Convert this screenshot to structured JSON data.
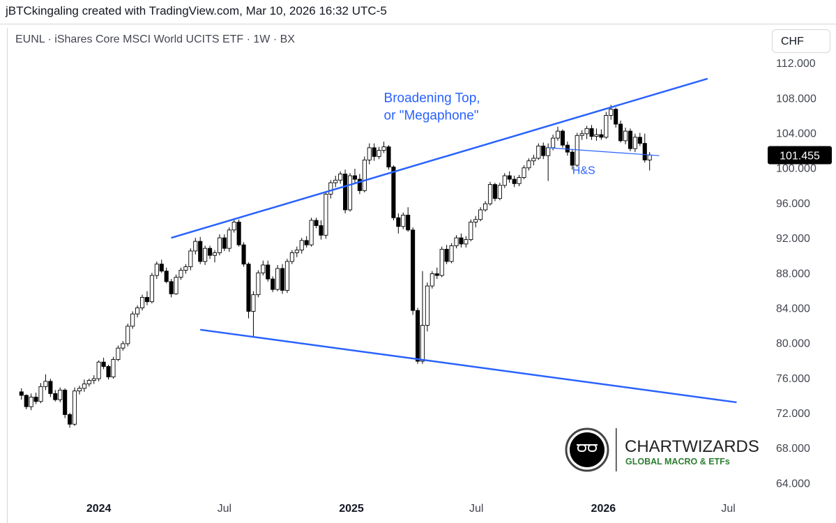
{
  "header": {
    "caption": "jBTCkingaling created with TradingView.com, Mar 10, 2026 16:32 UTC-5"
  },
  "chart_header": {
    "symbol_title": "EUNL · iShares Core MSCI World UCITS ETF · 1W · BX",
    "currency": "CHF"
  },
  "colors": {
    "trendline": "#2962ff",
    "annotation_text": "#2962ff",
    "candle_up_fill": "#ffffff",
    "candle_down_fill": "#000000",
    "candle_outline": "#000000",
    "price_tag_bg": "#000000",
    "price_tag_text": "#ffffff"
  },
  "logo": {
    "icon": "eyeglasses-icon",
    "brand": "CHARTWIZARDS",
    "tagline": "GLOBAL MACRO & ETFs"
  },
  "chart_data": {
    "type": "candlestick",
    "interval": "1W",
    "ylim": [
      61,
      116
    ],
    "y_ticks": [
      64,
      68,
      72,
      76,
      80,
      84,
      88,
      92,
      96,
      100,
      104,
      108,
      112
    ],
    "y_tick_labels": [
      "64.000",
      "68.000",
      "72.000",
      "76.000",
      "80.000",
      "84.000",
      "88.000",
      "92.000",
      "96.000",
      "100.000",
      "104.000",
      "108.000",
      "112.000"
    ],
    "x_range": [
      "2023-08-21",
      "2026-08-24"
    ],
    "x_ticks": [
      {
        "date": "2024-01-01",
        "label": "2024",
        "bold": true
      },
      {
        "date": "2024-07-01",
        "label": "Jul",
        "bold": false
      },
      {
        "date": "2025-01-01",
        "label": "2025",
        "bold": true
      },
      {
        "date": "2025-07-01",
        "label": "Jul",
        "bold": false
      },
      {
        "date": "2026-01-01",
        "label": "2026",
        "bold": true
      },
      {
        "date": "2026-07-01",
        "label": "Jul",
        "bold": false
      }
    ],
    "last_price": 101.455,
    "last_price_label": "101.455",
    "candles": [
      [
        "2023-09-11",
        74.4,
        74.8,
        73.5,
        74.0
      ],
      [
        "2023-09-18",
        74.0,
        74.1,
        72.4,
        72.7
      ],
      [
        "2023-09-25",
        72.7,
        74.2,
        72.3,
        73.8
      ],
      [
        "2023-10-02",
        73.8,
        74.3,
        73.0,
        73.3
      ],
      [
        "2023-10-09",
        73.3,
        75.4,
        73.1,
        75.0
      ],
      [
        "2023-10-16",
        75.0,
        76.4,
        74.6,
        75.6
      ],
      [
        "2023-10-23",
        75.6,
        75.9,
        73.8,
        74.2
      ],
      [
        "2023-10-30",
        74.2,
        74.6,
        73.3,
        73.5
      ],
      [
        "2023-11-06",
        73.5,
        74.9,
        73.2,
        74.6
      ],
      [
        "2023-11-13",
        74.6,
        74.8,
        71.4,
        71.8
      ],
      [
        "2023-11-20",
        71.8,
        72.0,
        70.3,
        70.7
      ],
      [
        "2023-11-27",
        70.7,
        74.9,
        70.5,
        74.5
      ],
      [
        "2023-12-04",
        74.5,
        75.1,
        74.1,
        74.8
      ],
      [
        "2023-12-11",
        74.8,
        75.8,
        74.4,
        75.3
      ],
      [
        "2023-12-18",
        75.3,
        75.9,
        75.0,
        75.7
      ],
      [
        "2023-12-25",
        75.7,
        76.3,
        75.3,
        75.9
      ],
      [
        "2024-01-01",
        75.9,
        78.0,
        75.6,
        77.8
      ],
      [
        "2024-01-08",
        77.8,
        78.3,
        77.0,
        77.3
      ],
      [
        "2024-01-15",
        77.3,
        77.5,
        75.8,
        76.1
      ],
      [
        "2024-01-22",
        76.1,
        78.4,
        75.9,
        78.1
      ],
      [
        "2024-01-29",
        78.1,
        79.7,
        77.9,
        79.4
      ],
      [
        "2024-02-05",
        79.4,
        80.2,
        79.1,
        79.9
      ],
      [
        "2024-02-12",
        79.9,
        82.2,
        79.6,
        81.9
      ],
      [
        "2024-02-19",
        81.9,
        83.6,
        81.6,
        83.3
      ],
      [
        "2024-02-26",
        83.3,
        84.3,
        82.9,
        84.0
      ],
      [
        "2024-03-04",
        84.0,
        85.5,
        83.7,
        85.2
      ],
      [
        "2024-03-11",
        85.2,
        85.9,
        84.3,
        84.7
      ],
      [
        "2024-03-18",
        84.7,
        88.0,
        84.5,
        87.7
      ],
      [
        "2024-03-25",
        87.7,
        89.3,
        87.3,
        89.0
      ],
      [
        "2024-04-01",
        89.0,
        89.5,
        88.0,
        88.2
      ],
      [
        "2024-04-08",
        88.2,
        88.6,
        86.8,
        87.0
      ],
      [
        "2024-04-15",
        87.0,
        87.3,
        85.2,
        85.6
      ],
      [
        "2024-04-22",
        85.6,
        87.8,
        85.5,
        87.5
      ],
      [
        "2024-04-29",
        87.5,
        88.6,
        87.2,
        88.3
      ],
      [
        "2024-05-06",
        88.3,
        89.0,
        87.9,
        88.7
      ],
      [
        "2024-05-13",
        88.7,
        90.8,
        88.3,
        90.5
      ],
      [
        "2024-05-20",
        90.5,
        92.0,
        90.1,
        91.6
      ],
      [
        "2024-05-27",
        91.6,
        92.1,
        89.0,
        89.3
      ],
      [
        "2024-06-03",
        89.3,
        91.1,
        88.9,
        90.8
      ],
      [
        "2024-06-10",
        90.8,
        91.1,
        89.6,
        90.0
      ],
      [
        "2024-06-17",
        90.0,
        90.6,
        89.2,
        90.3
      ],
      [
        "2024-06-24",
        90.3,
        92.4,
        90.0,
        92.0
      ],
      [
        "2024-07-01",
        92.0,
        92.4,
        90.5,
        90.8
      ],
      [
        "2024-07-08",
        90.8,
        93.2,
        90.4,
        92.9
      ],
      [
        "2024-07-15",
        92.9,
        94.2,
        92.6,
        93.8
      ],
      [
        "2024-07-22",
        93.8,
        94.1,
        91.0,
        91.2
      ],
      [
        "2024-07-29",
        91.2,
        91.5,
        88.7,
        89.0
      ],
      [
        "2024-08-05",
        89.0,
        89.2,
        82.8,
        83.6
      ],
      [
        "2024-08-12",
        83.6,
        85.9,
        80.6,
        85.5
      ],
      [
        "2024-08-19",
        85.5,
        88.3,
        85.2,
        88.0
      ],
      [
        "2024-08-26",
        88.0,
        89.4,
        87.7,
        88.9
      ],
      [
        "2024-09-02",
        88.9,
        89.4,
        87.0,
        87.3
      ],
      [
        "2024-09-09",
        87.3,
        87.6,
        85.8,
        86.1
      ],
      [
        "2024-09-16",
        86.1,
        88.9,
        85.9,
        88.5
      ],
      [
        "2024-09-23",
        88.5,
        89.0,
        85.6,
        86.0
      ],
      [
        "2024-09-30",
        86.0,
        89.6,
        85.7,
        89.3
      ],
      [
        "2024-10-07",
        89.3,
        90.6,
        89.0,
        90.3
      ],
      [
        "2024-10-14",
        90.3,
        91.0,
        89.8,
        90.6
      ],
      [
        "2024-10-21",
        90.6,
        92.0,
        90.2,
        91.7
      ],
      [
        "2024-10-28",
        91.7,
        92.2,
        90.9,
        91.2
      ],
      [
        "2024-11-04",
        91.2,
        94.3,
        91.0,
        94.0
      ],
      [
        "2024-11-11",
        94.0,
        94.3,
        93.1,
        93.4
      ],
      [
        "2024-11-18",
        93.4,
        94.0,
        91.8,
        92.3
      ],
      [
        "2024-11-25",
        92.3,
        97.3,
        91.9,
        97.0
      ],
      [
        "2024-12-02",
        97.0,
        98.6,
        96.5,
        98.3
      ],
      [
        "2024-12-09",
        98.3,
        99.1,
        97.8,
        98.6
      ],
      [
        "2024-12-16",
        98.6,
        99.6,
        98.2,
        99.3
      ],
      [
        "2024-12-23",
        99.3,
        99.8,
        94.8,
        95.2
      ],
      [
        "2024-12-30",
        95.2,
        99.4,
        95.0,
        99.1
      ],
      [
        "2025-01-06",
        99.1,
        99.9,
        98.3,
        98.7
      ],
      [
        "2025-01-13",
        98.7,
        99.3,
        97.0,
        97.4
      ],
      [
        "2025-01-20",
        97.4,
        101.3,
        97.2,
        100.9
      ],
      [
        "2025-01-27",
        100.9,
        102.8,
        100.4,
        102.3
      ],
      [
        "2025-02-03",
        102.3,
        102.8,
        100.8,
        101.3
      ],
      [
        "2025-02-10",
        101.3,
        102.4,
        101.0,
        102.0
      ],
      [
        "2025-02-17",
        102.0,
        103.0,
        101.7,
        102.4
      ],
      [
        "2025-02-24",
        102.4,
        102.6,
        99.8,
        100.1
      ],
      [
        "2025-03-03",
        100.1,
        100.3,
        94.0,
        94.3
      ],
      [
        "2025-03-10",
        94.3,
        94.8,
        92.5,
        93.3
      ],
      [
        "2025-03-17",
        93.3,
        94.9,
        93.0,
        94.6
      ],
      [
        "2025-03-24",
        94.6,
        95.5,
        92.7,
        92.9
      ],
      [
        "2025-03-31",
        92.9,
        93.2,
        83.2,
        83.7
      ],
      [
        "2025-04-07",
        83.7,
        84.0,
        77.6,
        77.9
      ],
      [
        "2025-04-14",
        77.9,
        88.2,
        77.6,
        82.0
      ],
      [
        "2025-04-21",
        82.0,
        86.9,
        81.3,
        86.5
      ],
      [
        "2025-04-28",
        86.5,
        88.2,
        86.2,
        87.9
      ],
      [
        "2025-05-05",
        87.9,
        88.6,
        87.3,
        87.7
      ],
      [
        "2025-05-12",
        87.7,
        91.0,
        87.5,
        90.7
      ],
      [
        "2025-05-19",
        90.7,
        91.2,
        89.0,
        89.3
      ],
      [
        "2025-05-26",
        89.3,
        91.4,
        89.1,
        91.1
      ],
      [
        "2025-06-02",
        91.1,
        92.3,
        90.8,
        92.0
      ],
      [
        "2025-06-09",
        92.0,
        92.5,
        90.9,
        91.3
      ],
      [
        "2025-06-16",
        91.3,
        92.2,
        90.9,
        91.8
      ],
      [
        "2025-06-23",
        91.8,
        94.1,
        91.6,
        93.8
      ],
      [
        "2025-06-30",
        93.8,
        94.5,
        93.2,
        94.1
      ],
      [
        "2025-07-07",
        94.1,
        95.5,
        93.9,
        95.2
      ],
      [
        "2025-07-14",
        95.2,
        96.2,
        95.0,
        95.9
      ],
      [
        "2025-07-21",
        95.9,
        98.4,
        95.7,
        98.1
      ],
      [
        "2025-07-28",
        98.1,
        98.3,
        96.2,
        96.5
      ],
      [
        "2025-08-04",
        96.5,
        98.3,
        96.3,
        98.0
      ],
      [
        "2025-08-11",
        98.0,
        99.4,
        97.7,
        99.1
      ],
      [
        "2025-08-18",
        99.1,
        99.6,
        98.3,
        98.7
      ],
      [
        "2025-08-25",
        98.7,
        99.1,
        97.8,
        98.2
      ],
      [
        "2025-09-01",
        98.2,
        99.2,
        97.9,
        98.9
      ],
      [
        "2025-09-08",
        98.9,
        100.3,
        98.7,
        100.0
      ],
      [
        "2025-09-15",
        100.0,
        101.1,
        99.7,
        100.8
      ],
      [
        "2025-09-22",
        100.8,
        101.5,
        100.3,
        101.1
      ],
      [
        "2025-09-29",
        101.1,
        102.8,
        100.9,
        102.5
      ],
      [
        "2025-10-06",
        102.5,
        102.9,
        101.0,
        101.4
      ],
      [
        "2025-10-13",
        101.4,
        102.8,
        98.5,
        102.3
      ],
      [
        "2025-10-20",
        102.3,
        103.8,
        102.0,
        103.4
      ],
      [
        "2025-10-27",
        103.4,
        104.7,
        103.1,
        104.2
      ],
      [
        "2025-11-03",
        104.2,
        104.4,
        102.3,
        102.6
      ],
      [
        "2025-11-10",
        102.6,
        103.0,
        101.4,
        101.8
      ],
      [
        "2025-11-17",
        101.8,
        102.1,
        99.8,
        100.3
      ],
      [
        "2025-11-24",
        100.3,
        104.0,
        100.1,
        103.7
      ],
      [
        "2025-12-01",
        103.7,
        104.3,
        103.2,
        103.9
      ],
      [
        "2025-12-08",
        103.9,
        104.8,
        103.3,
        104.5
      ],
      [
        "2025-12-15",
        104.5,
        104.9,
        103.2,
        103.6
      ],
      [
        "2025-12-22",
        103.6,
        104.5,
        103.1,
        103.8
      ],
      [
        "2025-12-29",
        103.8,
        104.4,
        103.2,
        103.5
      ],
      [
        "2026-01-05",
        103.5,
        106.4,
        103.3,
        106.0
      ],
      [
        "2026-01-12",
        106.0,
        107.2,
        105.5,
        106.7
      ],
      [
        "2026-01-19",
        106.7,
        106.9,
        104.6,
        105.0
      ],
      [
        "2026-01-26",
        105.0,
        105.4,
        102.9,
        103.1
      ],
      [
        "2026-02-02",
        103.1,
        104.6,
        102.7,
        104.2
      ],
      [
        "2026-02-09",
        104.2,
        104.5,
        101.9,
        102.2
      ],
      [
        "2026-02-16",
        102.2,
        103.9,
        101.8,
        103.5
      ],
      [
        "2026-02-23",
        103.5,
        104.0,
        102.5,
        102.8
      ],
      [
        "2026-03-02",
        102.8,
        103.9,
        100.6,
        100.9
      ],
      [
        "2026-03-09",
        100.9,
        101.8,
        99.7,
        101.455
      ]
    ],
    "trendlines": [
      {
        "name": "upper-trendline",
        "from": [
          "2024-04-15",
          92.0
        ],
        "to": [
          "2026-06-01",
          110.2
        ]
      },
      {
        "name": "lower-trendline",
        "from": [
          "2024-05-27",
          81.5
        ],
        "to": [
          "2026-07-13",
          73.2
        ]
      },
      {
        "name": "neckline",
        "from": [
          "2025-10-13",
          102.3
        ],
        "to": [
          "2026-03-23",
          101.4
        ]
      }
    ],
    "annotations": [
      {
        "name": "broadening-top-label",
        "text": "Broadening Top,",
        "at": [
          "2025-02-17",
          107.5
        ]
      },
      {
        "name": "megaphone-label",
        "text": "or \"Megaphone\"",
        "at": [
          "2025-02-17",
          105.5
        ]
      },
      {
        "name": "hs-label",
        "text": "H&S",
        "at": [
          "2025-11-17",
          99.3
        ]
      }
    ]
  }
}
